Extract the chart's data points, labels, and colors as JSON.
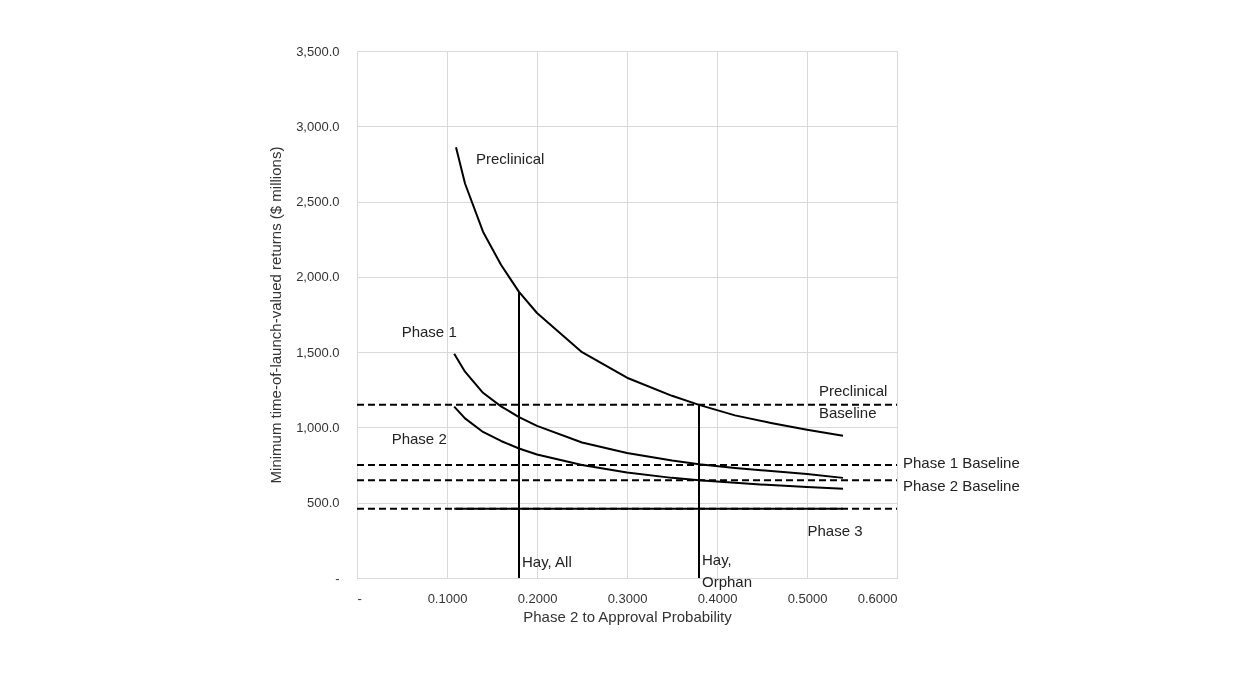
{
  "chart_data": {
    "type": "line",
    "xlabel": "Phase 2 to Approval Probability",
    "ylabel": "Minimum time-of-launch-valued returns ($ millions)",
    "xlim": [
      0,
      0.6
    ],
    "ylim": [
      0,
      3500
    ],
    "xticks": [
      {
        "value": 0,
        "label": "-"
      },
      {
        "value": 0.1,
        "label": "0.1000"
      },
      {
        "value": 0.2,
        "label": "0.2000"
      },
      {
        "value": 0.3,
        "label": "0.3000"
      },
      {
        "value": 0.4,
        "label": "0.4000"
      },
      {
        "value": 0.5,
        "label": "0.5000"
      },
      {
        "value": 0.6,
        "label": "0.6000"
      }
    ],
    "yticks": [
      {
        "value": 0,
        "label": "-"
      },
      {
        "value": 500,
        "label": "500.0"
      },
      {
        "value": 1000,
        "label": "1,000.0"
      },
      {
        "value": 1500,
        "label": "1,500.0"
      },
      {
        "value": 2000,
        "label": "2,000.0"
      },
      {
        "value": 2500,
        "label": "2,500.0"
      },
      {
        "value": 3000,
        "label": "3,000.0"
      },
      {
        "value": 3500,
        "label": "3,500.0"
      }
    ],
    "grid": true,
    "marker": "none",
    "series": [
      {
        "name": "Preclinical",
        "color": "#000000",
        "line_style": "solid",
        "x": [
          0.11,
          0.12,
          0.14,
          0.16,
          0.18,
          0.2,
          0.25,
          0.3,
          0.35,
          0.38,
          0.42,
          0.46,
          0.5,
          0.54
        ],
        "values": [
          2860,
          2620,
          2300,
          2080,
          1900,
          1760,
          1500,
          1330,
          1210,
          1150,
          1080,
          1030,
          985,
          945
        ]
      },
      {
        "name": "Phase 1",
        "color": "#000000",
        "line_style": "solid",
        "x": [
          0.108,
          0.12,
          0.14,
          0.16,
          0.18,
          0.2,
          0.25,
          0.3,
          0.35,
          0.38,
          0.42,
          0.46,
          0.5,
          0.54
        ],
        "values": [
          1490,
          1370,
          1230,
          1140,
          1069,
          1010,
          900,
          830,
          780,
          755,
          730,
          710,
          690,
          665
        ]
      },
      {
        "name": "Phase 2",
        "color": "#000000",
        "line_style": "solid",
        "x": [
          0.108,
          0.12,
          0.14,
          0.16,
          0.18,
          0.2,
          0.25,
          0.3,
          0.35,
          0.38,
          0.42,
          0.46,
          0.5,
          0.54
        ],
        "values": [
          1138,
          1060,
          970,
          910,
          860,
          820,
          750,
          700,
          665,
          650,
          632,
          617,
          604,
          592
        ]
      },
      {
        "name": "Phase 3",
        "color": "#000000",
        "line_style": "solid",
        "x": [
          0.108,
          0.54
        ],
        "values": [
          460,
          460
        ]
      },
      {
        "name": "Preclinical Baseline",
        "color": "#000000",
        "line_style": "dashed",
        "x": [
          0,
          0.6
        ],
        "values": [
          1150,
          1150
        ]
      },
      {
        "name": "Phase 1 Baseline",
        "color": "#000000",
        "line_style": "dashed",
        "x": [
          0,
          0.6
        ],
        "values": [
          750,
          750
        ]
      },
      {
        "name": "Phase 2 Baseline",
        "color": "#000000",
        "line_style": "dashed",
        "x": [
          0,
          0.6
        ],
        "values": [
          650,
          650
        ]
      },
      {
        "color": "#000000",
        "line_style": "dashed",
        "x": [
          0,
          0.6
        ],
        "values": [
          460,
          460
        ]
      },
      {
        "name": "Hay, All",
        "color": "#000000",
        "line_style": "solid",
        "x": [
          0.18,
          0.18
        ],
        "values": [
          0,
          1900
        ]
      },
      {
        "name": "Hay, Orphan",
        "color": "#000000",
        "line_style": "solid",
        "x": [
          0.38,
          0.38
        ],
        "values": [
          0,
          1150
        ]
      }
    ]
  }
}
